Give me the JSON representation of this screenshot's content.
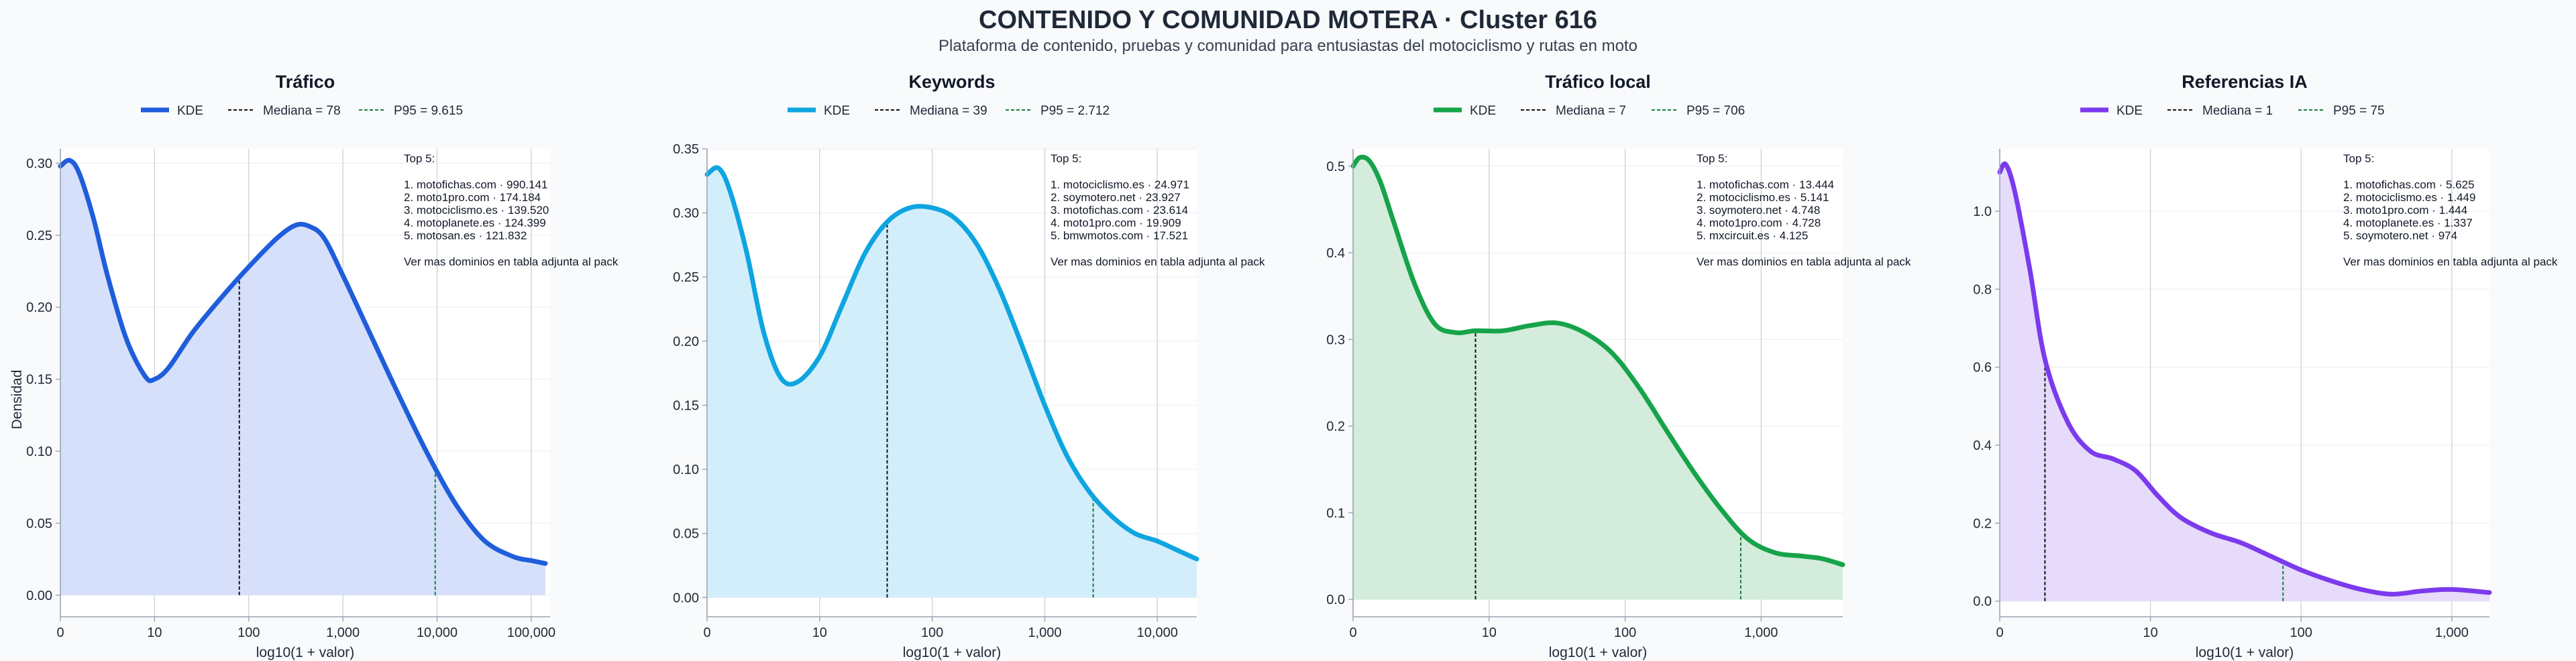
{
  "title": "CONTENIDO Y COMUNIDAD MOTERA · Cluster 616",
  "subtitle": "Plataforma de contenido, pruebas y comunidad para entusiastas del motociclismo y rutas en moto",
  "ylabel": "Densidad",
  "legend_labels": {
    "kde": "KDE"
  },
  "colors": {
    "median_line": "#111111",
    "p95_line": "#15803d",
    "grid": "#e5e7eb",
    "axis": "#9ca3af"
  },
  "chart_data": [
    {
      "type": "area",
      "title": "Tráfico",
      "xlabel": "log10(1 + valor)",
      "ylabel": "Densidad",
      "color": "#1f5ddb",
      "fill": "#d6e0fa",
      "xlim": [
        0,
        5.2
      ],
      "ylim": [
        -0.015,
        0.31
      ],
      "xticks": [
        0,
        1,
        2,
        3,
        4,
        5
      ],
      "xticklabels": [
        "0",
        "10",
        "100",
        "1,000",
        "10,000",
        "100,000"
      ],
      "yticks": [
        0,
        0.05,
        0.1,
        0.15,
        0.2,
        0.25,
        0.3
      ],
      "yticklabels": [
        "0.00",
        "0.05",
        "0.10",
        "0.15",
        "0.20",
        "0.25",
        "0.30"
      ],
      "median_label": "Mediana = 78",
      "p95_label": "P95 = 9.615",
      "median_x": 1.9,
      "p95_x": 3.98,
      "kde": {
        "x": [
          0,
          0.1,
          0.2,
          0.35,
          0.5,
          0.7,
          0.9,
          1.0,
          1.15,
          1.4,
          1.7,
          2.0,
          2.3,
          2.5,
          2.65,
          2.8,
          3.0,
          3.3,
          3.6,
          3.9,
          4.2,
          4.5,
          4.8,
          5.0,
          5.15
        ],
        "y": [
          0.298,
          0.302,
          0.293,
          0.262,
          0.222,
          0.178,
          0.152,
          0.15,
          0.158,
          0.182,
          0.206,
          0.228,
          0.248,
          0.257,
          0.256,
          0.248,
          0.222,
          0.18,
          0.138,
          0.098,
          0.063,
          0.038,
          0.027,
          0.024,
          0.022
        ]
      },
      "top_heading": "Top 5:",
      "top5": [
        "1. motofichas.com · 990.141",
        "2. moto1pro.com · 174.184",
        "3. motociclismo.es · 139.520",
        "4. motoplanete.es · 124.399",
        "5. motosan.es · 121.832"
      ],
      "note": "Ver mas dominios en tabla adjunta al pack"
    },
    {
      "type": "area",
      "title": "Keywords",
      "xlabel": "log10(1 + valor)",
      "ylabel": "",
      "color": "#0ea5e0",
      "fill": "#d3eefb",
      "xlim": [
        0,
        4.35
      ],
      "ylim": [
        -0.015,
        0.35
      ],
      "xticks": [
        0,
        1,
        2,
        3,
        4
      ],
      "xticklabels": [
        "0",
        "10",
        "100",
        "1,000",
        "10,000"
      ],
      "yticks": [
        0,
        0.05,
        0.1,
        0.15,
        0.2,
        0.25,
        0.3,
        0.35
      ],
      "yticklabels": [
        "0.00",
        "0.05",
        "0.10",
        "0.15",
        "0.20",
        "0.25",
        "0.30",
        "0.35"
      ],
      "median_label": "Mediana = 39",
      "p95_label": "P95 = 2.712",
      "median_x": 1.6,
      "p95_x": 3.43,
      "kde": {
        "x": [
          0,
          0.1,
          0.2,
          0.35,
          0.5,
          0.65,
          0.8,
          1.0,
          1.2,
          1.4,
          1.6,
          1.8,
          2.0,
          2.2,
          2.4,
          2.6,
          2.8,
          3.0,
          3.2,
          3.4,
          3.6,
          3.8,
          4.0,
          4.2,
          4.35
        ],
        "y": [
          0.33,
          0.335,
          0.318,
          0.27,
          0.208,
          0.172,
          0.168,
          0.188,
          0.228,
          0.268,
          0.293,
          0.304,
          0.304,
          0.296,
          0.275,
          0.24,
          0.196,
          0.15,
          0.11,
          0.082,
          0.063,
          0.05,
          0.044,
          0.036,
          0.03
        ]
      },
      "top_heading": "Top 5:",
      "top5": [
        "1. motociclismo.es · 24.971",
        "2. soymotero.net · 23.927",
        "3. motofichas.com · 23.614",
        "4. moto1pro.com · 19.909",
        "5. bmwmotos.com · 17.521"
      ],
      "note": "Ver mas dominios en tabla adjunta al pack"
    },
    {
      "type": "area",
      "title": "Tráfico local",
      "xlabel": "log10(1 + valor)",
      "ylabel": "",
      "color": "#16a34a",
      "fill": "#d3ecdb",
      "xlim": [
        0,
        3.6
      ],
      "ylim": [
        -0.02,
        0.52
      ],
      "xticks": [
        0,
        1,
        2,
        3
      ],
      "xticklabels": [
        "0",
        "10",
        "100",
        "1,000"
      ],
      "yticks": [
        0,
        0.1,
        0.2,
        0.3,
        0.4,
        0.5
      ],
      "yticklabels": [
        "0.0",
        "0.1",
        "0.2",
        "0.3",
        "0.4",
        "0.5"
      ],
      "median_label": "Mediana = 7",
      "p95_label": "P95 = 706",
      "median_x": 0.9,
      "p95_x": 2.85,
      "kde": {
        "x": [
          0,
          0.05,
          0.12,
          0.2,
          0.3,
          0.45,
          0.6,
          0.75,
          0.9,
          1.1,
          1.3,
          1.5,
          1.7,
          1.9,
          2.1,
          2.3,
          2.5,
          2.7,
          2.9,
          3.1,
          3.3,
          3.45,
          3.6
        ],
        "y": [
          0.5,
          0.51,
          0.506,
          0.482,
          0.435,
          0.365,
          0.318,
          0.308,
          0.31,
          0.31,
          0.316,
          0.319,
          0.308,
          0.285,
          0.245,
          0.196,
          0.148,
          0.105,
          0.07,
          0.054,
          0.05,
          0.047,
          0.04
        ]
      },
      "top_heading": "Top 5:",
      "top5": [
        "1. motofichas.com · 13.444",
        "2. motociclismo.es · 5.141",
        "3. soymotero.net · 4.748",
        "4. moto1pro.com · 4.728",
        "5. mxcircuit.es · 4.125"
      ],
      "note": "Ver mas dominios en tabla adjunta al pack"
    },
    {
      "type": "area",
      "title": "Referencias IA",
      "xlabel": "log10(1 + valor)",
      "ylabel": "",
      "color": "#7c3aed",
      "fill": "#e6dbfa",
      "xlim": [
        0,
        3.25
      ],
      "ylim": [
        -0.04,
        1.16
      ],
      "xticks": [
        0,
        1,
        2,
        3
      ],
      "xticklabels": [
        "0",
        "10",
        "100",
        "1,000"
      ],
      "yticks": [
        0,
        0.2,
        0.4,
        0.6,
        0.8,
        1.0
      ],
      "yticklabels": [
        "0.0",
        "0.2",
        "0.4",
        "0.6",
        "0.8",
        "1.0"
      ],
      "median_label": "Mediana = 1",
      "p95_label": "P95 = 75",
      "median_x": 0.3,
      "p95_x": 1.88,
      "kde": {
        "x": [
          0,
          0.04,
          0.1,
          0.2,
          0.3,
          0.45,
          0.6,
          0.75,
          0.9,
          1.05,
          1.2,
          1.4,
          1.6,
          1.8,
          2.0,
          2.2,
          2.4,
          2.6,
          2.8,
          3.0,
          3.25
        ],
        "y": [
          1.1,
          1.12,
          1.05,
          0.85,
          0.62,
          0.46,
          0.385,
          0.365,
          0.335,
          0.27,
          0.215,
          0.175,
          0.15,
          0.115,
          0.08,
          0.052,
          0.03,
          0.018,
          0.026,
          0.03,
          0.022
        ]
      },
      "top_heading": "Top 5:",
      "top5": [
        "1. motofichas.com · 5.625",
        "2. motociclismo.es · 1.449",
        "3. moto1pro.com · 1.444",
        "4. motoplanete.es · 1.337",
        "5. soymotero.net · 974"
      ],
      "note": "Ver mas dominios en tabla adjunta al pack"
    }
  ]
}
